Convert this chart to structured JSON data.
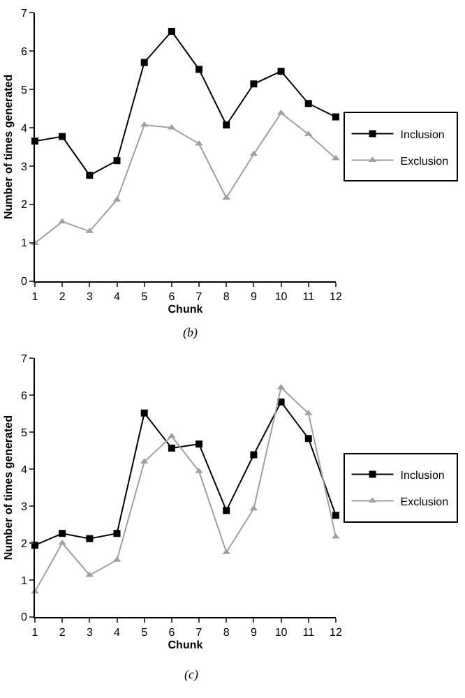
{
  "chart_data": [
    {
      "type": "line",
      "xlabel": "Chunk",
      "ylabel": "Number of times generated",
      "annotations": [
        "(b)"
      ],
      "x": [
        1,
        2,
        3,
        4,
        5,
        6,
        7,
        8,
        9,
        10,
        11,
        12
      ],
      "xlim": [
        1,
        12
      ],
      "xticks": [
        1,
        2,
        3,
        4,
        5,
        6,
        7,
        8,
        9,
        10,
        11,
        12
      ],
      "ylim": [
        0,
        7
      ],
      "yticks": [
        0,
        1,
        2,
        3,
        4,
        5,
        6,
        7
      ],
      "legend": "right",
      "line_style": "solid",
      "series": [
        {
          "name": "Inclusion",
          "color": "#000000",
          "marker": "square",
          "values": [
            3.65,
            3.77,
            2.76,
            3.14,
            5.7,
            6.51,
            5.52,
            4.07,
            5.14,
            5.47,
            4.63,
            4.28
          ]
        },
        {
          "name": "Exclusion",
          "color": "#a0a0a0",
          "marker": "triangle",
          "values": [
            0.99,
            1.55,
            1.3,
            2.12,
            4.07,
            4.0,
            3.58,
            2.17,
            3.31,
            4.38,
            3.83,
            3.2
          ]
        }
      ]
    },
    {
      "type": "line",
      "xlabel": "Chunk",
      "ylabel": "Number of times generated",
      "annotations": [
        "(c)"
      ],
      "x": [
        1,
        2,
        3,
        4,
        5,
        6,
        7,
        8,
        9,
        10,
        11,
        12
      ],
      "xlim": [
        1,
        12
      ],
      "xticks": [
        1,
        2,
        3,
        4,
        5,
        6,
        7,
        8,
        9,
        10,
        11,
        12
      ],
      "ylim": [
        0,
        7
      ],
      "yticks": [
        0,
        1,
        2,
        3,
        4,
        5,
        6,
        7
      ],
      "legend": "right",
      "line_style": "solid",
      "series": [
        {
          "name": "Inclusion",
          "color": "#000000",
          "marker": "square",
          "values": [
            1.94,
            2.26,
            2.12,
            2.26,
            5.52,
            4.57,
            4.68,
            2.88,
            4.39,
            5.82,
            4.83,
            2.75
          ]
        },
        {
          "name": "Exclusion",
          "color": "#a0a0a0",
          "marker": "triangle",
          "values": [
            0.68,
            2.0,
            1.13,
            1.54,
            4.2,
            4.89,
            3.94,
            1.75,
            2.93,
            6.21,
            5.51,
            2.17
          ]
        }
      ]
    }
  ]
}
